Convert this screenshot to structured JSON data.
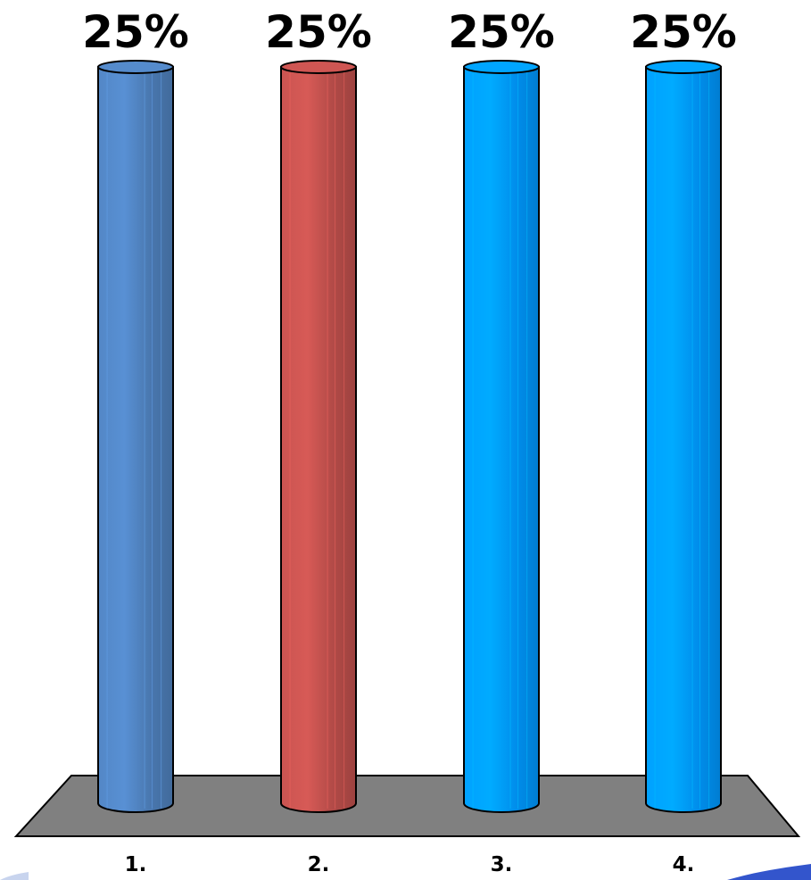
{
  "chart_data": {
    "type": "bar",
    "categories": [
      "1.",
      "2.",
      "3.",
      "4."
    ],
    "values": [
      25,
      25,
      25,
      25
    ],
    "data_labels": [
      "25%",
      "25%",
      "25%",
      "25%"
    ],
    "ylim": [
      0,
      25
    ],
    "grid": false,
    "legend": "none",
    "colors": [
      "#4f81bd",
      "#c0504d",
      "#0099ff",
      "#0099ff"
    ]
  }
}
